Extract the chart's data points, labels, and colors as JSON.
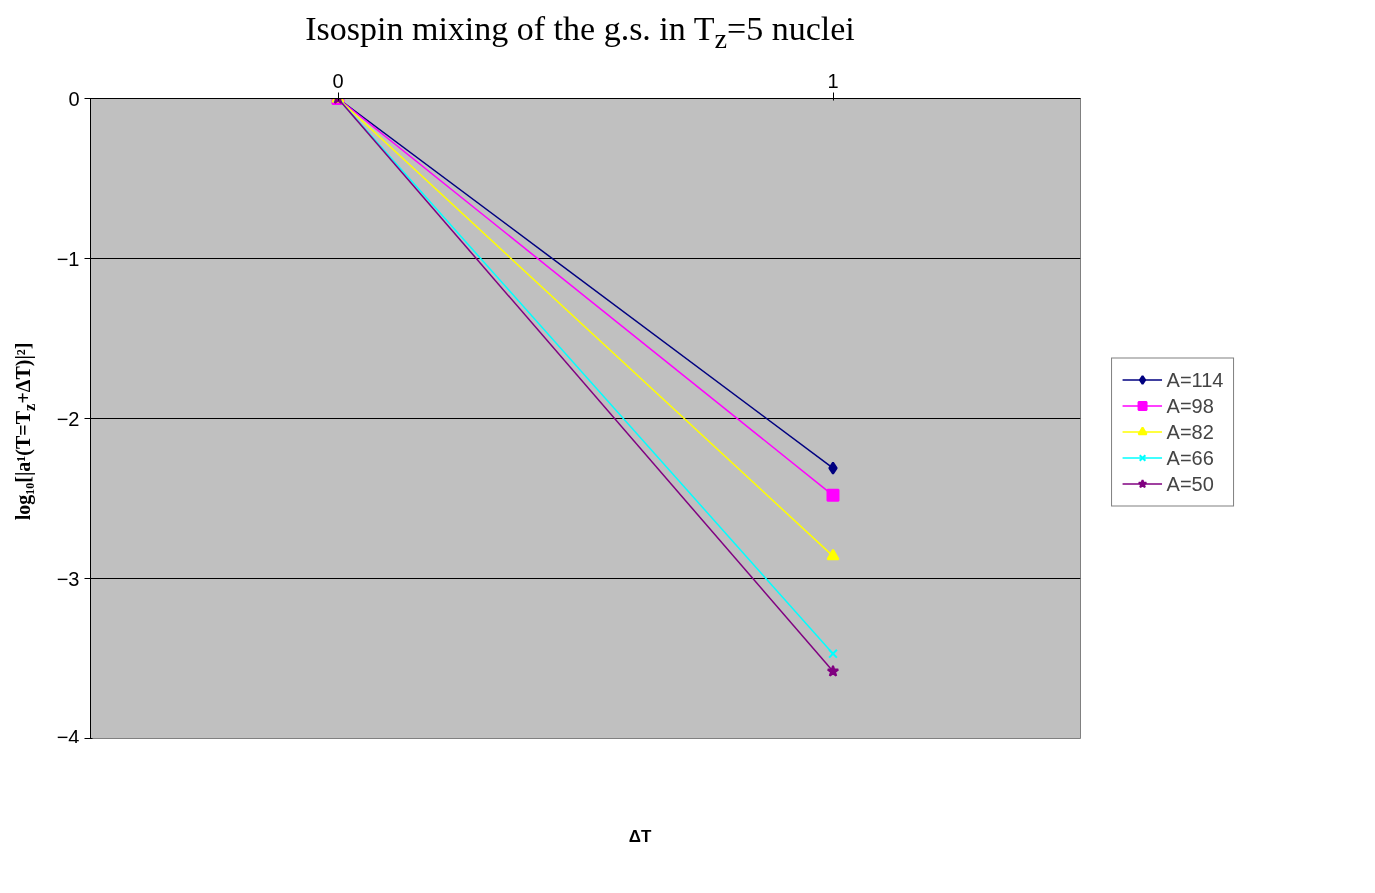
{
  "chart_data": {
    "type": "line",
    "title": "Isospin mixing of the g.s. in T$_{z}$=5 nuclei",
    "xlabel": "ΔT",
    "ylabel": "log₁₀[|a¹(T=T$_{z}$+ΔT)|²]",
    "categories": [
      "0",
      "1"
    ],
    "series": [
      {
        "name": "A=114",
        "color": "#000080",
        "marker": "diamond",
        "values": [
          0,
          -2.31
        ]
      },
      {
        "name": "A=98",
        "color": "#ff00ff",
        "marker": "square",
        "values": [
          0,
          -2.48
        ]
      },
      {
        "name": "A=82",
        "color": "#ffff00",
        "marker": "triangle",
        "values": [
          0,
          -2.86
        ]
      },
      {
        "name": "A=66",
        "color": "#00ffff",
        "marker": "cross",
        "values": [
          0,
          -3.47
        ]
      },
      {
        "name": "A=50",
        "color": "#800080",
        "marker": "star",
        "values": [
          0,
          -3.58
        ]
      }
    ],
    "ylim": [
      -4,
      0
    ],
    "yticks": [
      -4,
      -3,
      -2,
      -1,
      0
    ],
    "grid": "y",
    "legend": "right"
  }
}
